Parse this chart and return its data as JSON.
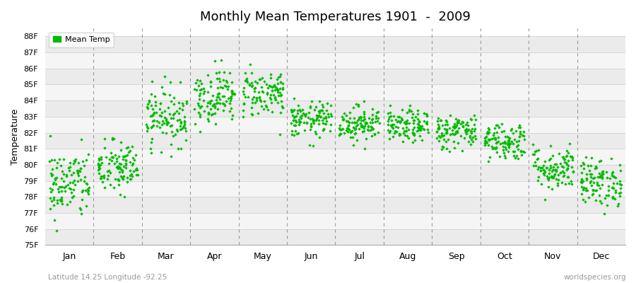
{
  "title": "Monthly Mean Temperatures 1901  -  2009",
  "ylabel": "Temperature",
  "dot_color": "#00BB00",
  "bg_color": "#FFFFFF",
  "plot_bg_color": "#FFFFFF",
  "legend_label": "Mean Temp",
  "subtitle": "Latitude 14.25 Longitude -92.25",
  "watermark": "worldspecies.org",
  "ylim": [
    75,
    88.5
  ],
  "yticks": [
    75,
    76,
    77,
    78,
    79,
    80,
    81,
    82,
    83,
    84,
    85,
    86,
    87,
    88
  ],
  "ytick_labels": [
    "75F",
    "76F",
    "77F",
    "78F",
    "79F",
    "80F",
    "81F",
    "82F",
    "83F",
    "84F",
    "85F",
    "86F",
    "87F",
    "88F"
  ],
  "months": [
    "Jan",
    "Feb",
    "Mar",
    "Apr",
    "May",
    "Jun",
    "Jul",
    "Aug",
    "Sep",
    "Oct",
    "Nov",
    "Dec"
  ],
  "seed": 42,
  "n_years": 109,
  "monthly_means": [
    78.8,
    79.8,
    83.0,
    84.3,
    84.5,
    82.8,
    82.6,
    82.4,
    82.1,
    81.5,
    79.8,
    78.9
  ],
  "monthly_stds": [
    1.1,
    0.85,
    0.9,
    0.85,
    0.75,
    0.55,
    0.55,
    0.5,
    0.55,
    0.6,
    0.7,
    0.75
  ],
  "band_colors": [
    "#EBEBEB",
    "#F5F5F5"
  ],
  "grid_color": "#CCCCCC",
  "dashed_color": "#999999"
}
